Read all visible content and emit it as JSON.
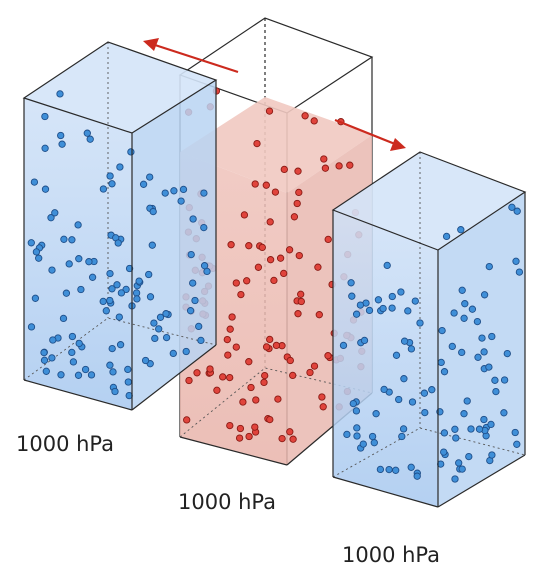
{
  "columns": [
    {
      "id": "left",
      "label": "1000 hPa",
      "fill": "#b7d3f4",
      "dot": "#3f8fd8",
      "dot_stroke": "#1f4f8a",
      "edge": "#2a2a2a"
    },
    {
      "id": "center",
      "label": "1000 hPa",
      "fill": "#eab8b0",
      "dot": "#e0443c",
      "dot_stroke": "#8a1a14",
      "edge": "#2a2a2a"
    },
    {
      "id": "right",
      "label": "1000 hPa",
      "fill": "#b7d3f4",
      "dot": "#3f8fd8",
      "dot_stroke": "#1f4f8a",
      "edge": "#2a2a2a"
    }
  ],
  "arrows": {
    "color": "#cc2a1e",
    "icons": [
      "arrow-left-icon",
      "arrow-right-icon"
    ]
  }
}
